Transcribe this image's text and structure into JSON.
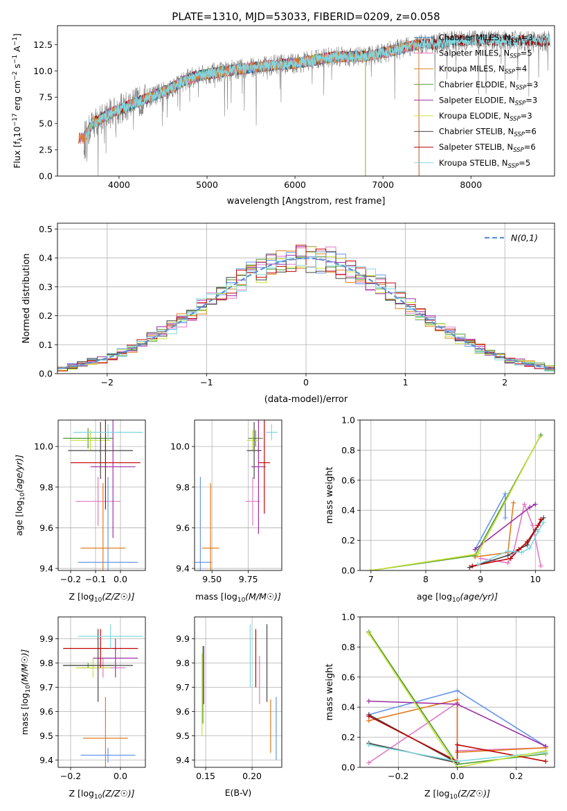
{
  "title": "PLATE=1310, MJD=53033, FIBERID=0209, z=0.058",
  "colors": {
    "Chabrier MILES": "#1f77b4",
    "Salpeter MILES": "#e377c2",
    "Kroupa MILES": "#e07b1a",
    "Chabrier ELODIE": "#4e9a2e",
    "Salpeter ELODIE": "#9c2fa6",
    "Kroupa ELODIE": "#c8e03a",
    "Chabrier STELIB": "#444444",
    "Salpeter STELIB": "#c00000",
    "Kroupa STELIB": "#7fd8e0"
  },
  "panel_colors": [
    "#6495ed",
    "#e377c2",
    "#e07b1a",
    "#4e9a2e",
    "#9c2fa6",
    "#c8e03a",
    "#444444",
    "#c00000",
    "#7fd8e0"
  ],
  "chart_data": [
    {
      "type": "line",
      "id": "spectrum",
      "xlabel": "wavelength [Angstrom, rest frame]",
      "ylabel": "Flux [f_λ 10^-17 erg cm^-2 s^-1 A^-1]",
      "xlim": [
        3300,
        8950
      ],
      "ylim": [
        0,
        14.3
      ],
      "xticks": [
        4000,
        5000,
        6000,
        7000,
        8000
      ],
      "yticks": [
        0.0,
        2.5,
        5.0,
        7.5,
        10.0,
        12.5
      ],
      "data_color": "#808080",
      "legend": [
        {
          "name": "Chabrier MILES",
          "nssp": "3"
        },
        {
          "name": "Salpeter MILES",
          "nssp": "5"
        },
        {
          "name": "Kroupa MILES",
          "nssp": "4"
        },
        {
          "name": "Chabrier ELODIE",
          "nssp": "3"
        },
        {
          "name": "Salpeter ELODIE",
          "nssp": "3"
        },
        {
          "name": "Kroupa ELODIE",
          "nssp": "3"
        },
        {
          "name": "Chabrier STELIB",
          "nssp": "6"
        },
        {
          "name": "Salpeter STELIB",
          "nssp": "6"
        },
        {
          "name": "Kroupa STELIB",
          "nssp": "5"
        }
      ],
      "continuum": [
        [
          3600,
          3.6
        ],
        [
          3700,
          5.0
        ],
        [
          3900,
          6.0
        ],
        [
          4000,
          6.3
        ],
        [
          4200,
          7.0
        ],
        [
          4500,
          8.0
        ],
        [
          4800,
          9.3
        ],
        [
          5000,
          9.7
        ],
        [
          5400,
          10.2
        ],
        [
          5800,
          10.6
        ],
        [
          6000,
          10.7
        ],
        [
          6400,
          11.3
        ],
        [
          6800,
          11.4
        ],
        [
          7000,
          11.7
        ],
        [
          7400,
          12.5
        ],
        [
          7600,
          12.6
        ],
        [
          7800,
          12.9
        ],
        [
          8200,
          12.9
        ],
        [
          8600,
          12.9
        ],
        [
          8900,
          12.8
        ]
      ],
      "model_ranges": {
        "MILES": [
          3540,
          7410
        ],
        "ELODIE": [
          3620,
          6800
        ],
        "STELIB": [
          3620,
          8900
        ]
      }
    },
    {
      "type": "bar",
      "id": "residuals",
      "xlabel": "(data-model)/error",
      "ylabel": "Normed distribution",
      "xlim": [
        -2.5,
        2.5
      ],
      "ylim": [
        0,
        0.52
      ],
      "xticks": [
        -2,
        -1,
        0,
        1,
        2
      ],
      "yticks": [
        0.0,
        0.1,
        0.2,
        0.3,
        0.4,
        0.5
      ],
      "legend_label": "N(0,1)",
      "bin_width": 0.1
    },
    {
      "type": "scatter",
      "id": "age-vs-Z",
      "xlabel": "Z [log10(Z/Z☉)]",
      "ylabel": "age  [log10(age/yr)]",
      "xlim": [
        -0.25,
        0.1
      ],
      "ylim": [
        9.39,
        10.13
      ],
      "xticks": [
        -0.2,
        -0.1,
        0.0
      ],
      "yticks": [
        9.4,
        9.6,
        9.8,
        10.0
      ],
      "points": [
        {
          "x": -0.05,
          "y": 9.43,
          "ex": 0.12,
          "ey": 0.42
        },
        {
          "x": -0.09,
          "y": 9.73,
          "ex": 0.09,
          "ey": 0.12
        },
        {
          "x": -0.07,
          "y": 9.5,
          "ex": 0.09,
          "ey": 0.32
        },
        {
          "x": -0.13,
          "y": 10.04,
          "ex": 0.1,
          "ey": 0.05
        },
        {
          "x": -0.03,
          "y": 9.9,
          "ex": 0.09,
          "ey": 0.35
        },
        {
          "x": -0.12,
          "y": 10.03,
          "ex": 0.08,
          "ey": 0.05
        },
        {
          "x": -0.08,
          "y": 9.98,
          "ex": 0.13,
          "ey": 0.14
        },
        {
          "x": -0.06,
          "y": 9.92,
          "ex": 0.14,
          "ey": 0.23
        },
        {
          "x": -0.05,
          "y": 10.07,
          "ex": 0.14,
          "ey": 0.04
        }
      ]
    },
    {
      "type": "scatter",
      "id": "age-vs-mass",
      "xlabel": "mass [log10(M/M☉)]",
      "ylabel": "",
      "xlim": [
        9.38,
        9.98
      ],
      "ylim": [
        9.39,
        10.13
      ],
      "xticks": [
        9.5,
        9.75
      ],
      "tick_labels": [
        "9.50",
        "9.75"
      ],
      "yticks": [
        9.4,
        9.6,
        9.8,
        10.0
      ],
      "points": [
        {
          "x": 9.42,
          "y": 9.43,
          "ex": 0.08,
          "ey": 0.42
        },
        {
          "x": 9.78,
          "y": 9.73,
          "ex": 0.05,
          "ey": 0.12
        },
        {
          "x": 9.49,
          "y": 9.5,
          "ex": 0.06,
          "ey": 0.32
        },
        {
          "x": 9.8,
          "y": 10.04,
          "ex": 0.05,
          "ey": 0.04
        },
        {
          "x": 9.82,
          "y": 9.9,
          "ex": 0.05,
          "ey": 0.33
        },
        {
          "x": 9.78,
          "y": 10.03,
          "ex": 0.04,
          "ey": 0.05
        },
        {
          "x": 9.79,
          "y": 9.98,
          "ex": 0.05,
          "ey": 0.14
        },
        {
          "x": 9.86,
          "y": 9.92,
          "ex": 0.04,
          "ey": 0.25
        },
        {
          "x": 9.91,
          "y": 10.07,
          "ex": 0.04,
          "ey": 0.04
        }
      ]
    },
    {
      "type": "line",
      "id": "weight-vs-age",
      "xlabel": "age  [log10(age/yr)]",
      "ylabel": "mass weight",
      "xlim": [
        6.8,
        10.35
      ],
      "ylim": [
        0,
        1.0
      ],
      "xticks": [
        7,
        8,
        9,
        10
      ],
      "yticks": [
        0.0,
        0.2,
        0.4,
        0.6,
        0.8,
        1.0
      ],
      "series": [
        {
          "points": [
            [
              8.9,
              0.14
            ],
            [
              9.45,
              0.51
            ],
            [
              9.45,
              0.35
            ]
          ]
        },
        {
          "points": [
            [
              9.0,
              0.08
            ],
            [
              9.5,
              0.05
            ],
            [
              9.6,
              0.12
            ],
            [
              9.8,
              0.44
            ],
            [
              9.95,
              0.3
            ],
            [
              10.1,
              0.03
            ]
          ]
        },
        {
          "points": [
            [
              8.9,
              0.09
            ],
            [
              9.5,
              0.12
            ],
            [
              9.6,
              0.45
            ]
          ]
        },
        {
          "points": [
            [
              7.0,
              0.0
            ],
            [
              8.9,
              0.1
            ],
            [
              10.1,
              0.9
            ]
          ]
        },
        {
          "points": [
            [
              8.9,
              0.14
            ],
            [
              9.9,
              0.42
            ],
            [
              10.0,
              0.44
            ]
          ]
        },
        {
          "points": [
            [
              7.0,
              0.0
            ],
            [
              8.95,
              0.11
            ],
            [
              10.08,
              0.89
            ]
          ]
        },
        {
          "points": [
            [
              8.8,
              0.02
            ],
            [
              9.5,
              0.1
            ],
            [
              9.7,
              0.14
            ],
            [
              9.85,
              0.17
            ],
            [
              10.0,
              0.27
            ],
            [
              10.15,
              0.35
            ]
          ]
        },
        {
          "points": [
            [
              8.85,
              0.03
            ],
            [
              9.55,
              0.08
            ],
            [
              9.7,
              0.14
            ],
            [
              9.85,
              0.19
            ],
            [
              10.05,
              0.3
            ],
            [
              10.1,
              0.34
            ]
          ]
        },
        {
          "points": [
            [
              8.95,
              0.04
            ],
            [
              9.5,
              0.13
            ],
            [
              9.75,
              0.12
            ],
            [
              9.9,
              0.15
            ],
            [
              10.05,
              0.26
            ],
            [
              10.15,
              0.32
            ]
          ]
        }
      ]
    },
    {
      "type": "scatter",
      "id": "mass-vs-Z",
      "xlabel": "Z [log10(Z/Z☉)]",
      "ylabel": "mass [log10(M/M☉)]",
      "xlim": [
        -0.25,
        0.1
      ],
      "ylim": [
        9.37,
        9.99
      ],
      "xticks": [
        -0.2,
        0.0
      ],
      "yticks": [
        9.4,
        9.5,
        9.6,
        9.7,
        9.8,
        9.9
      ],
      "points": [
        {
          "x": -0.05,
          "y": 9.42,
          "ex": 0.11,
          "ey": 0.03
        },
        {
          "x": -0.07,
          "y": 9.78,
          "ex": 0.09,
          "ey": 0.04
        },
        {
          "x": -0.06,
          "y": 9.49,
          "ex": 0.09,
          "ey": 0.17
        },
        {
          "x": -0.13,
          "y": 9.79,
          "ex": 0.1,
          "ey": 0.01
        },
        {
          "x": -0.02,
          "y": 9.82,
          "ex": 0.09,
          "ey": 0.08
        },
        {
          "x": -0.11,
          "y": 9.78,
          "ex": 0.07,
          "ey": 0.04
        },
        {
          "x": -0.09,
          "y": 9.79,
          "ex": 0.14,
          "ey": 0.15
        },
        {
          "x": -0.08,
          "y": 9.86,
          "ex": 0.15,
          "ey": 0.08
        },
        {
          "x": -0.04,
          "y": 9.91,
          "ex": 0.13,
          "ey": 0.05
        }
      ]
    },
    {
      "type": "scatter",
      "id": "mass-vs-ebv",
      "xlabel": "E(B-V)",
      "ylabel": "",
      "xlim": [
        0.138,
        0.232
      ],
      "ylim": [
        9.37,
        9.99
      ],
      "xticks": [
        0.15,
        0.2
      ],
      "tick_labels": [
        "0.15",
        "0.20"
      ],
      "yticks": [
        9.4,
        9.5,
        9.6,
        9.7,
        9.8,
        9.9
      ],
      "points": [
        {
          "x": 0.226,
          "y": 9.53,
          "ey": 0.13
        },
        {
          "x": 0.208,
          "y": 9.73,
          "ey": 0.1
        },
        {
          "x": 0.22,
          "y": 9.54,
          "ey": 0.11
        },
        {
          "x": 0.147,
          "y": 9.71,
          "ey": 0.16
        },
        {
          "x": 0.148,
          "y": 9.75,
          "ey": 0.12
        },
        {
          "x": 0.146,
          "y": 9.67,
          "ey": 0.17
        },
        {
          "x": 0.216,
          "y": 9.8,
          "ey": 0.16
        },
        {
          "x": 0.204,
          "y": 9.82,
          "ey": 0.12
        },
        {
          "x": 0.198,
          "y": 9.83,
          "ey": 0.13
        }
      ]
    },
    {
      "type": "line",
      "id": "weight-vs-Z",
      "xlabel": "Z [log10(Z/Z☉)]",
      "ylabel": "mass weight",
      "xlim": [
        -0.33,
        0.33
      ],
      "ylim": [
        0,
        1.0
      ],
      "xticks": [
        -0.2,
        0.0,
        0.2
      ],
      "yticks": [
        0.0,
        0.2,
        0.4,
        0.6,
        0.8,
        1.0
      ],
      "series": [
        {
          "points": [
            [
              -0.3,
              0.35
            ],
            [
              0.0,
              0.51
            ],
            [
              0.3,
              0.14
            ]
          ]
        },
        {
          "points": [
            [
              -0.3,
              0.03
            ],
            [
              0.0,
              0.43
            ],
            [
              0.0,
              0.11
            ],
            [
              0.3,
              0.13
            ]
          ]
        },
        {
          "points": [
            [
              -0.3,
              0.31
            ],
            [
              0.0,
              0.45
            ],
            [
              0.0,
              0.1
            ],
            [
              0.3,
              0.13
            ]
          ]
        },
        {
          "points": [
            [
              -0.3,
              0.9
            ],
            [
              0.0,
              0.02
            ],
            [
              0.3,
              0.09
            ]
          ]
        },
        {
          "points": [
            [
              -0.3,
              0.44
            ],
            [
              0.0,
              0.42
            ],
            [
              0.3,
              0.14
            ]
          ]
        },
        {
          "points": [
            [
              -0.3,
              0.89
            ],
            [
              0.0,
              0.0
            ],
            [
              0.3,
              0.11
            ]
          ]
        },
        {
          "points": [
            [
              -0.3,
              0.35
            ],
            [
              0.0,
              0.03
            ],
            [
              -0.3,
              0.16
            ]
          ]
        },
        {
          "points": [
            [
              -0.3,
              0.34
            ],
            [
              0.0,
              0.04
            ],
            [
              0.0,
              0.15
            ],
            [
              0.3,
              0.04
            ]
          ]
        },
        {
          "points": [
            [
              -0.3,
              0.15
            ],
            [
              0.0,
              0.04
            ],
            [
              0.3,
              0.1
            ]
          ]
        }
      ]
    }
  ]
}
